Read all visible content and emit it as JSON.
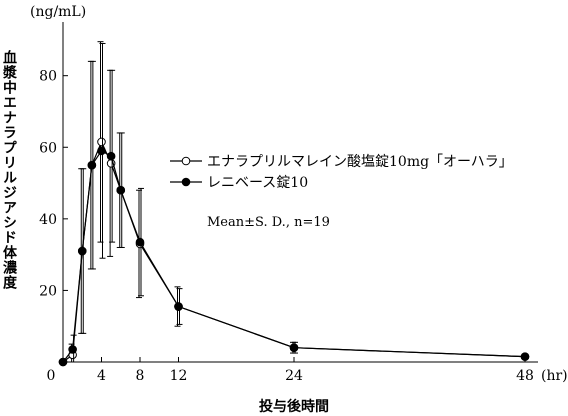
{
  "chart_data": {
    "type": "line",
    "ylabel": "血漿中エナラプリルジアシド体濃度",
    "y_unit": "(ng/mL)",
    "xlabel": "投与後時間",
    "x_unit": "(hr)",
    "xlim": [
      0,
      48
    ],
    "ylim": [
      0,
      95
    ],
    "x_ticks": [
      0,
      4,
      8,
      12,
      24,
      48
    ],
    "x_tick_labels": [
      "0",
      "4",
      "8",
      "12",
      "24",
      "48"
    ],
    "y_ticks": [
      20,
      40,
      60,
      80
    ],
    "y_tick_labels": [
      "20",
      "40",
      "60",
      "80"
    ],
    "x": [
      0,
      1,
      2,
      3,
      4,
      5,
      6,
      8,
      12,
      24,
      48
    ],
    "series": [
      {
        "name": "エナラプリルマレイン酸塩錠10mg「オーハラ」",
        "marker": "open-circle",
        "values": [
          0,
          2,
          31,
          55,
          61.5,
          55.5,
          48,
          33,
          15.5,
          4,
          1.5
        ],
        "sd": [
          0,
          3,
          23,
          29,
          28,
          26,
          16,
          15,
          5.5,
          1.5,
          0.5
        ]
      },
      {
        "name": "レニベース錠10",
        "marker": "filled-circle",
        "values": [
          0,
          3.5,
          31,
          55,
          59,
          57.5,
          48,
          33.5,
          15.5,
          4,
          1.5
        ],
        "sd": [
          0,
          4,
          23,
          29,
          30,
          24,
          16,
          15,
          5,
          1.5,
          0.5
        ]
      }
    ],
    "annotation": "Mean±S. D., n=19",
    "legend_position": "upper-right",
    "grid": false
  }
}
